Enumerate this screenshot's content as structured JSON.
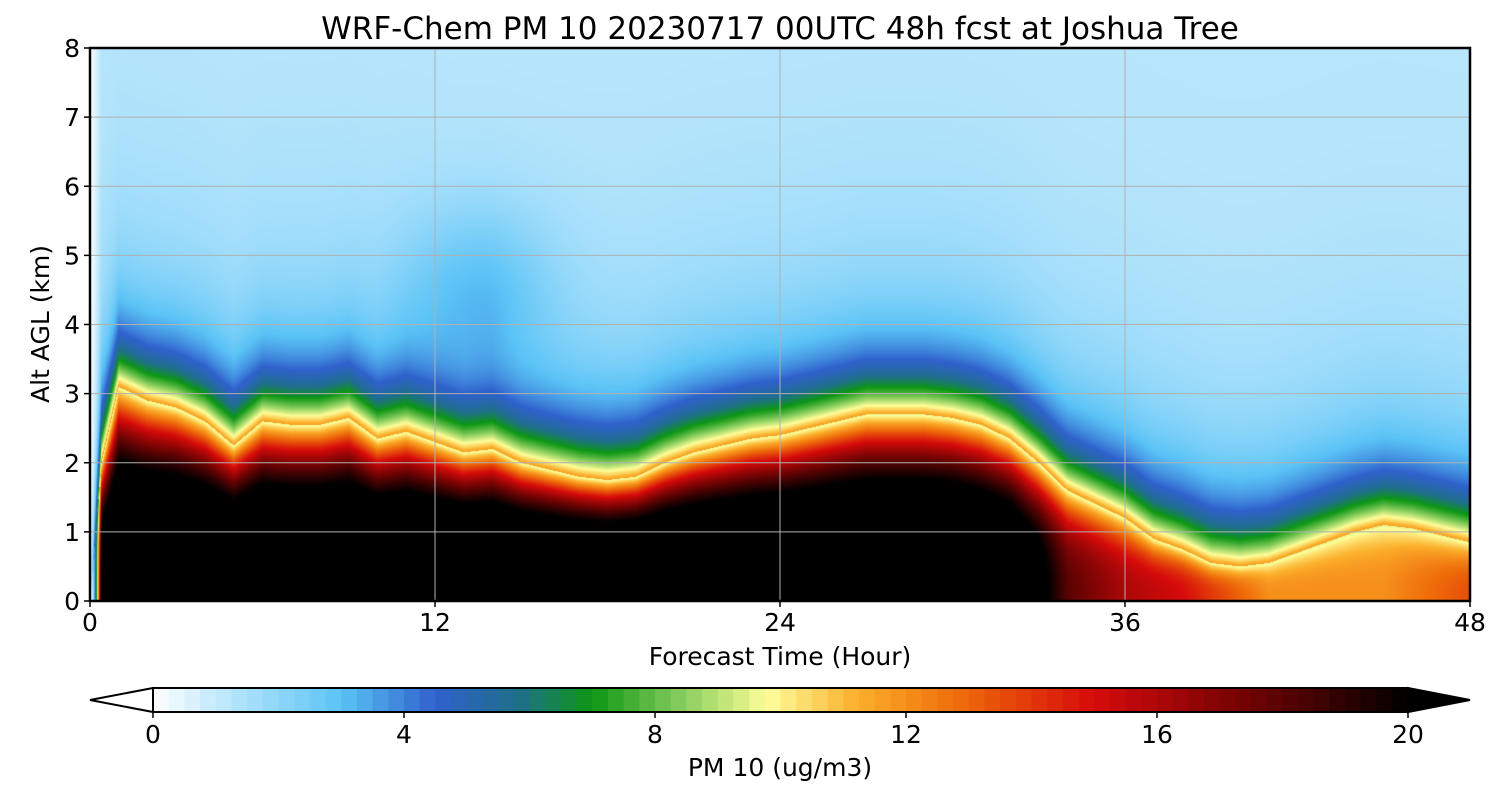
{
  "chart_data": {
    "type": "heatmap",
    "title": "WRF-Chem PM 10  20230717 00UTC 48h fcst at Joshua Tree",
    "xlabel": "Forecast Time (Hour)",
    "ylabel": "Alt AGL (km)",
    "xlim": [
      0,
      48
    ],
    "ylim": [
      0,
      8
    ],
    "xticks": [
      "0",
      "12",
      "24",
      "36",
      "48"
    ],
    "yticks": [
      "0",
      "1",
      "2",
      "3",
      "4",
      "5",
      "6",
      "7",
      "8"
    ],
    "grid": true,
    "colorbar": {
      "label": "PM 10  (ug/m3)",
      "range": [
        0,
        20
      ],
      "ticks": [
        "0",
        "4",
        "8",
        "12",
        "16",
        "20"
      ],
      "extend": "both",
      "orientation": "horizontal",
      "stops": [
        {
          "v": 0,
          "c": "#ffffff"
        },
        {
          "v": 1.5,
          "c": "#a8e0fb"
        },
        {
          "v": 3,
          "c": "#5ac3f6"
        },
        {
          "v": 4.5,
          "c": "#2f61cc"
        },
        {
          "v": 5.8,
          "c": "#1f6f8b"
        },
        {
          "v": 7.0,
          "c": "#0d9614"
        },
        {
          "v": 8.5,
          "c": "#8dd060"
        },
        {
          "v": 9.8,
          "c": "#fefe99"
        },
        {
          "v": 11.2,
          "c": "#fcb02c"
        },
        {
          "v": 12.8,
          "c": "#ef6d0a"
        },
        {
          "v": 15.0,
          "c": "#d60a0a"
        },
        {
          "v": 17.5,
          "c": "#6e0303"
        },
        {
          "v": 20,
          "c": "#000000"
        }
      ]
    },
    "hours": [
      0,
      0.4,
      1,
      2,
      3,
      4,
      5,
      6,
      7,
      8,
      9,
      10,
      11,
      12,
      13,
      14,
      15,
      16,
      17,
      18,
      19,
      20,
      21,
      22,
      23,
      24,
      25,
      26,
      27,
      28,
      29,
      30,
      31,
      32,
      33,
      34,
      35,
      36,
      37,
      38,
      39,
      40,
      41,
      42,
      43,
      44,
      45,
      46,
      47,
      48
    ],
    "altitudes_km": [
      0,
      0.5,
      1.0,
      1.5,
      2.0,
      2.5,
      3.0,
      3.5,
      4.0,
      4.5,
      5.0,
      5.5,
      6.0,
      6.5,
      7.0,
      7.5,
      8.0
    ],
    "pm10_profile_top_km": [
      0.0,
      2.0,
      3.1,
      2.9,
      2.8,
      2.6,
      2.25,
      2.6,
      2.55,
      2.55,
      2.65,
      2.35,
      2.45,
      2.3,
      2.15,
      2.2,
      2.0,
      1.9,
      1.8,
      1.75,
      1.8,
      2.0,
      2.15,
      2.25,
      2.35,
      2.4,
      2.5,
      2.6,
      2.7,
      2.7,
      2.7,
      2.65,
      2.55,
      2.35,
      2.0,
      1.6,
      1.4,
      1.2,
      0.9,
      0.75,
      0.55,
      0.5,
      0.55,
      0.7,
      0.85,
      1.0,
      1.1,
      1.05,
      0.95,
      0.85
    ],
    "pm10_surface_ugm3": [
      0,
      22,
      24,
      24,
      24,
      24,
      24,
      24,
      24,
      24,
      24,
      24,
      24,
      24,
      24,
      24,
      24,
      24,
      24,
      24,
      24,
      24,
      24,
      24,
      24,
      24,
      24,
      24,
      24,
      24,
      24,
      24,
      23.5,
      23,
      21,
      18,
      17,
      16,
      15.5,
      15,
      14,
      13,
      12,
      12,
      12,
      12,
      12,
      12.5,
      13,
      13.5
    ]
  }
}
